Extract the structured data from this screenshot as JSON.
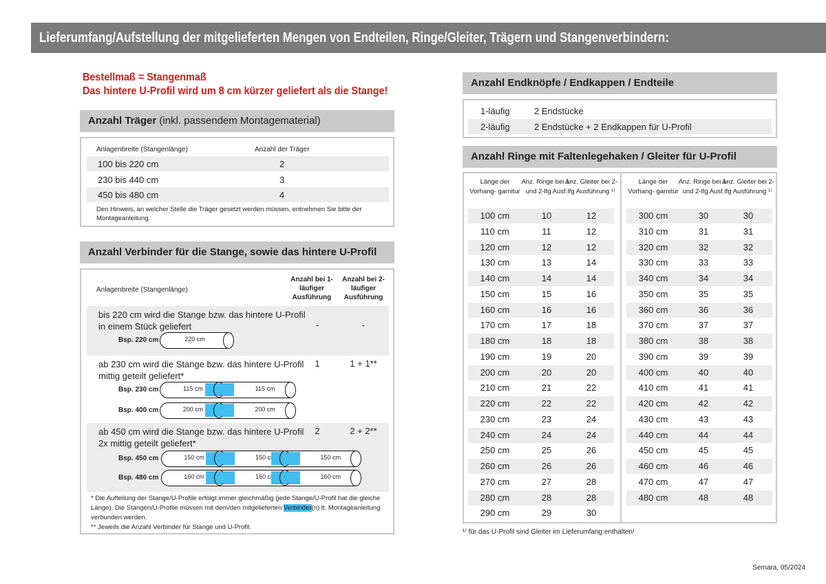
{
  "title": "Lieferumfang/Aufstellung der mitgelieferten Mengen von Endteilen, Ringe/Gleiter, Trägern und Stangenverbindern:",
  "notice": {
    "line1": "Bestellmaß = Stangenmaß",
    "line2": "Das hintere U-Profil wird um 8 cm kürzer geliefert als die Stange!"
  },
  "traeger": {
    "heading_bold": "Anzahl Träger",
    "heading_rest": " (inkl. passendem Montagematerial)",
    "col1": "Anlagenbreite (Stangenlänge)",
    "col2": "Anzahl der Träger",
    "rows": [
      {
        "range": "100 bis 220 cm",
        "count": "2"
      },
      {
        "range": "230 bis 440 cm",
        "count": "3"
      },
      {
        "range": "450 bis 480 cm",
        "count": "4"
      }
    ],
    "note": "Den Hinweis, an welcher Stelle die Träger gesetzt werden müssen, entnehmen Sie bitte der Montageanleitung."
  },
  "verbinder": {
    "heading": "Anzahl Verbinder für die Stange, sowie das hintere U-Profil",
    "col1": "Anlagenbreite (Stangenlänge)",
    "col2": "Anzahl bei 1-läufiger Ausführung",
    "col3": "Anzahl bei 2-läufiger Ausführung",
    "rows": [
      {
        "text1": "bis 220 cm wird die Stange bzw. das hintere U-Profil",
        "text2": "in einem Stück geliefert",
        "one": "-",
        "two": "-",
        "examples": [
          {
            "label": "Bsp. 220 cm",
            "segments": [
              "220 cm"
            ]
          }
        ]
      },
      {
        "text1": "ab 230 cm wird die Stange bzw. das hintere U-Profil",
        "text2": "mittig geteilt geliefert*",
        "one": "1",
        "two": "1 + 1**",
        "examples": [
          {
            "label": "Bsp. 230 cm",
            "segments": [
              "115 cm",
              "115 cm"
            ]
          },
          {
            "label": "Bsp. 400 cm",
            "segments": [
              "200 cm",
              "200 cm"
            ]
          }
        ]
      },
      {
        "text1": "ab 450 cm wird die Stange bzw. das hintere U-Profil",
        "text2": "2x mittig geteilt geliefert*",
        "one": "2",
        "two": "2 + 2**",
        "examples": [
          {
            "label": "Bsp. 450 cm",
            "segments": [
              "150 cm",
              "150 cm",
              "150 cm"
            ]
          },
          {
            "label": "Bsp. 480 cm",
            "segments": [
              "160 cm",
              "160 cm",
              "160 cm"
            ]
          }
        ]
      }
    ],
    "foot1a": "* Die Aufteilung der Stange/U-Profile erfolgt immer gleichmäßig (jede Stange/U-Profil hat die gleiche Länge). Die Stangen/U-Profile müssen mit dem/den mitgelieferten ",
    "foot1b": "Verbinder",
    "foot1c": "(n) lt. Montageanleitung verbunden werden.",
    "foot2": "** Jeweils die Anzahl Verbinder für Stange und U-Profil.",
    "highlight_color": "#41bdf0"
  },
  "endteile": {
    "heading": "Anzahl Endknöpfe / Endkappen / Endteile",
    "rows": [
      {
        "type": "1-läufig",
        "value": "2 Endstücke"
      },
      {
        "type": "2-läufig",
        "value": "2 Endstücke + 2 Endkappen für U-Profil"
      }
    ]
  },
  "ringe": {
    "heading": "Anzahl Ringe mit Faltenlegehaken / Gleiter für U-Profil",
    "headers": [
      "Länge der Vorhang- garnitur",
      "Anz. Ringe bei 1- und 2-lfg Ausf.",
      "Anz. Gleiter bei 2-lfg Ausführung ¹⁾"
    ],
    "left": [
      [
        "100 cm",
        "10",
        "12"
      ],
      [
        "110 cm",
        "11",
        "12"
      ],
      [
        "120 cm",
        "12",
        "12"
      ],
      [
        "130 cm",
        "13",
        "14"
      ],
      [
        "140 cm",
        "14",
        "14"
      ],
      [
        "150 cm",
        "15",
        "16"
      ],
      [
        "160 cm",
        "16",
        "16"
      ],
      [
        "170 cm",
        "17",
        "18"
      ],
      [
        "180 cm",
        "18",
        "18"
      ],
      [
        "190 cm",
        "19",
        "20"
      ],
      [
        "200 cm",
        "20",
        "20"
      ],
      [
        "210 cm",
        "21",
        "22"
      ],
      [
        "220 cm",
        "22",
        "22"
      ],
      [
        "230 cm",
        "23",
        "24"
      ],
      [
        "240 cm",
        "24",
        "24"
      ],
      [
        "250 cm",
        "25",
        "26"
      ],
      [
        "260 cm",
        "26",
        "26"
      ],
      [
        "270 cm",
        "27",
        "28"
      ],
      [
        "280 cm",
        "28",
        "28"
      ],
      [
        "290 cm",
        "29",
        "30"
      ]
    ],
    "right": [
      [
        "300 cm",
        "30",
        "30"
      ],
      [
        "310 cm",
        "31",
        "31"
      ],
      [
        "320 cm",
        "32",
        "32"
      ],
      [
        "330 cm",
        "33",
        "33"
      ],
      [
        "340 cm",
        "34",
        "34"
      ],
      [
        "350 cm",
        "35",
        "35"
      ],
      [
        "360 cm",
        "36",
        "36"
      ],
      [
        "370 cm",
        "37",
        "37"
      ],
      [
        "380 cm",
        "38",
        "38"
      ],
      [
        "390 cm",
        "39",
        "39"
      ],
      [
        "400 cm",
        "40",
        "40"
      ],
      [
        "410 cm",
        "41",
        "41"
      ],
      [
        "420 cm",
        "42",
        "42"
      ],
      [
        "430 cm",
        "43",
        "43"
      ],
      [
        "440 cm",
        "44",
        "44"
      ],
      [
        "450 cm",
        "45",
        "45"
      ],
      [
        "460 cm",
        "46",
        "46"
      ],
      [
        "470 cm",
        "47",
        "47"
      ],
      [
        "480 cm",
        "48",
        "48"
      ]
    ],
    "footnote": "¹⁾ für das U-Profil sind Gleiter im Lieferumfang enthalten!"
  },
  "footer": "Semara, 05/2024"
}
